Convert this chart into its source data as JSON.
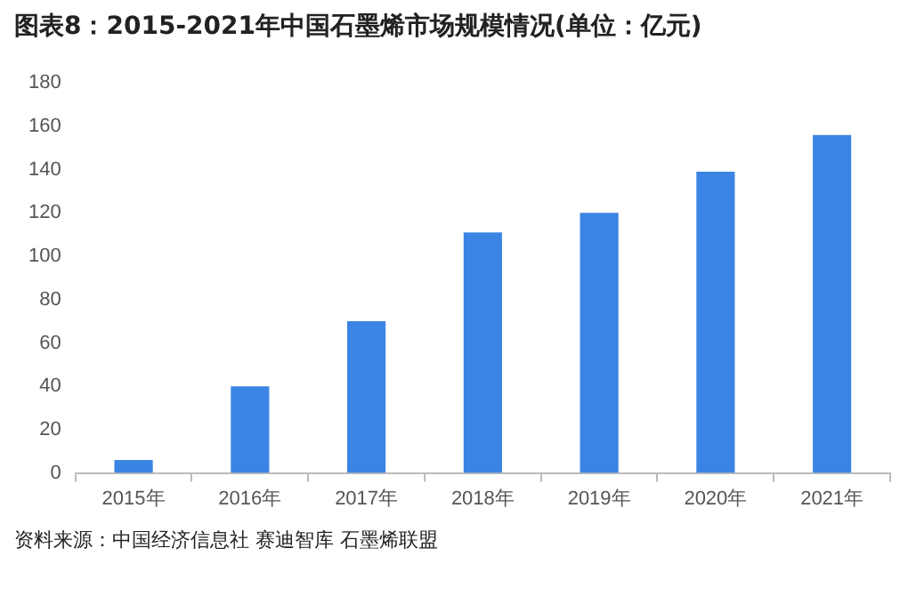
{
  "chart_data": {
    "type": "bar",
    "title": "图表8：2015-2021年中国石墨烯市场规模情况(单位：亿元)",
    "categories": [
      "2015年",
      "2016年",
      "2017年",
      "2018年",
      "2019年",
      "2020年",
      "2021年"
    ],
    "values": [
      6,
      40,
      70,
      111,
      120,
      139,
      156
    ],
    "color": "#3a84e4",
    "ylim": [
      0,
      180
    ],
    "yticks": [
      0,
      20,
      40,
      60,
      80,
      100,
      120,
      140,
      160,
      180
    ],
    "grid": false,
    "legend": false,
    "annotations": [
      "资料来源：中国经济信息社 赛迪智库 石墨烯联盟"
    ]
  }
}
